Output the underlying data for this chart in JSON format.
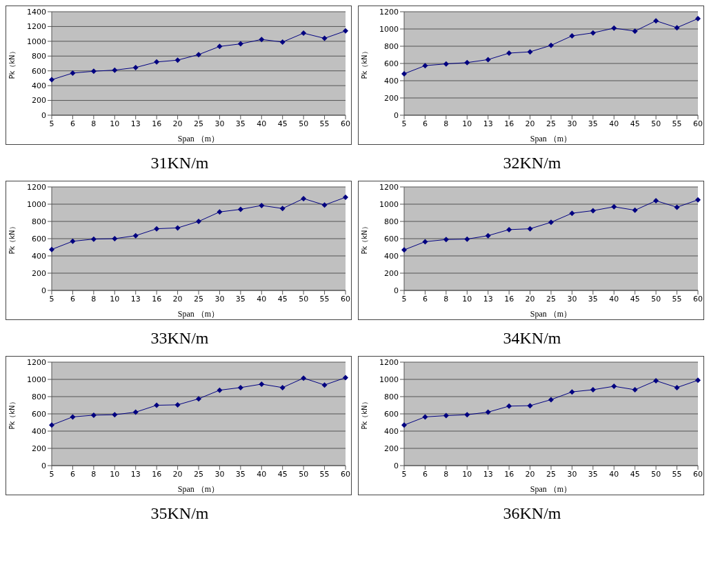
{
  "chart_data": [
    {
      "type": "line",
      "title": "31KN/m",
      "xlabel": "Span （m）",
      "ylabel": "Pk（kN）",
      "categories": [
        "5",
        "6",
        "8",
        "10",
        "13",
        "16",
        "20",
        "25",
        "30",
        "35",
        "40",
        "45",
        "50",
        "55",
        "60"
      ],
      "series": [
        {
          "color": "#000080",
          "values": [
            480,
            570,
            595,
            610,
            645,
            720,
            745,
            820,
            930,
            965,
            1025,
            990,
            1110,
            1040,
            1140
          ]
        }
      ],
      "ylim": [
        0,
        1400
      ],
      "yticks": [
        0,
        200,
        400,
        600,
        800,
        1000,
        1200,
        1400
      ],
      "grid": "y",
      "marker": "diamond",
      "legend": false
    },
    {
      "type": "line",
      "title": "32KN/m",
      "xlabel": "Span （m）",
      "ylabel": "Pk（kN）",
      "categories": [
        "5",
        "6",
        "8",
        "10",
        "13",
        "16",
        "20",
        "25",
        "30",
        "35",
        "40",
        "45",
        "50",
        "55",
        "60"
      ],
      "series": [
        {
          "color": "#000080",
          "values": [
            480,
            575,
            595,
            610,
            645,
            720,
            735,
            810,
            920,
            955,
            1010,
            975,
            1095,
            1015,
            1120
          ]
        }
      ],
      "ylim": [
        0,
        1200
      ],
      "yticks": [
        0,
        200,
        400,
        600,
        800,
        1000,
        1200
      ],
      "grid": "y",
      "marker": "diamond",
      "legend": false
    },
    {
      "type": "line",
      "title": "33KN/m",
      "xlabel": "Span （m）",
      "ylabel": "Pk（kN）",
      "categories": [
        "5",
        "6",
        "8",
        "10",
        "13",
        "16",
        "20",
        "25",
        "30",
        "35",
        "40",
        "45",
        "50",
        "55",
        "60"
      ],
      "series": [
        {
          "color": "#000080",
          "values": [
            475,
            570,
            595,
            600,
            635,
            715,
            725,
            800,
            910,
            940,
            985,
            950,
            1065,
            990,
            1080
          ]
        }
      ],
      "ylim": [
        0,
        1200
      ],
      "yticks": [
        0,
        200,
        400,
        600,
        800,
        1000,
        1200
      ],
      "grid": "y",
      "marker": "diamond",
      "legend": false
    },
    {
      "type": "line",
      "title": "34KN/m",
      "xlabel": "Span （m）",
      "ylabel": "Pk（kN）",
      "categories": [
        "5",
        "6",
        "8",
        "10",
        "13",
        "16",
        "20",
        "25",
        "30",
        "35",
        "40",
        "45",
        "50",
        "55",
        "60"
      ],
      "series": [
        {
          "color": "#000080",
          "values": [
            470,
            565,
            590,
            595,
            635,
            705,
            715,
            790,
            895,
            925,
            970,
            930,
            1040,
            965,
            1050
          ]
        }
      ],
      "ylim": [
        0,
        1200
      ],
      "yticks": [
        0,
        200,
        400,
        600,
        800,
        1000,
        1200
      ],
      "grid": "y",
      "marker": "diamond",
      "legend": false
    },
    {
      "type": "line",
      "title": "35KN/m",
      "xlabel": "Span （m）",
      "ylabel": "Pk（kN）",
      "categories": [
        "5",
        "6",
        "8",
        "10",
        "13",
        "16",
        "20",
        "25",
        "30",
        "35",
        "40",
        "45",
        "50",
        "55",
        "60"
      ],
      "series": [
        {
          "color": "#000080",
          "values": [
            470,
            565,
            585,
            590,
            620,
            700,
            705,
            775,
            875,
            905,
            945,
            905,
            1015,
            935,
            1020
          ]
        }
      ],
      "ylim": [
        0,
        1200
      ],
      "yticks": [
        0,
        200,
        400,
        600,
        800,
        1000,
        1200
      ],
      "grid": "y",
      "marker": "diamond",
      "legend": false
    },
    {
      "type": "line",
      "title": "36KN/m",
      "xlabel": "Span （m）",
      "ylabel": "Pk（kN）",
      "categories": [
        "5",
        "6",
        "8",
        "10",
        "13",
        "16",
        "20",
        "25",
        "30",
        "35",
        "40",
        "45",
        "50",
        "55",
        "60"
      ],
      "series": [
        {
          "color": "#000080",
          "values": [
            470,
            565,
            580,
            590,
            620,
            690,
            695,
            765,
            855,
            880,
            920,
            880,
            985,
            905,
            990
          ]
        }
      ],
      "ylim": [
        0,
        1200
      ],
      "yticks": [
        0,
        200,
        400,
        600,
        800,
        1000,
        1200
      ],
      "grid": "y",
      "marker": "diamond",
      "legend": false
    }
  ]
}
